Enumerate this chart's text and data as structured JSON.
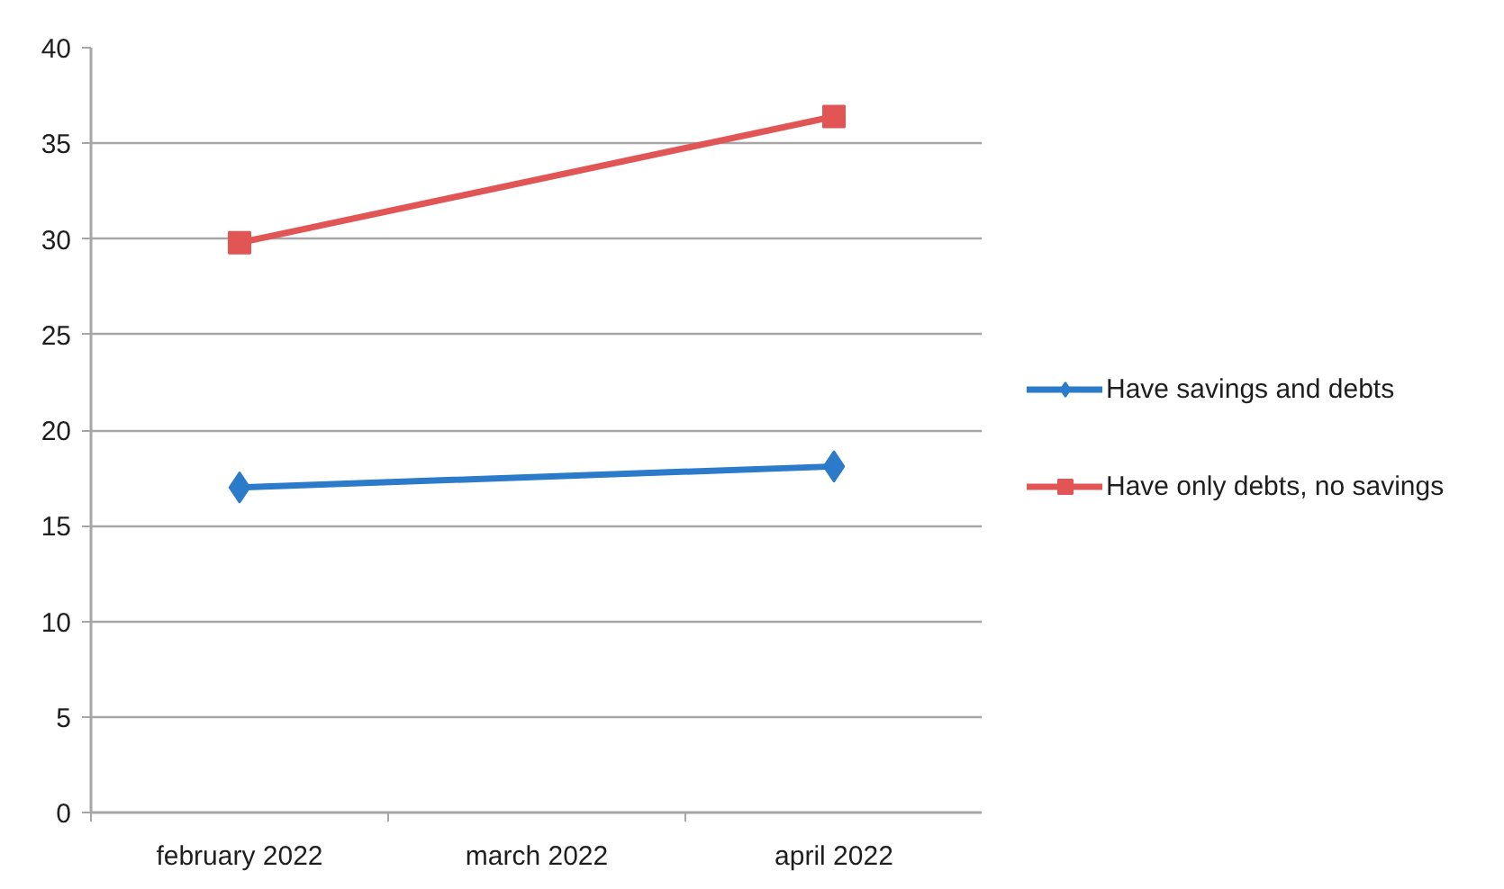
{
  "chart_data": {
    "type": "line",
    "categories": [
      "february 2022",
      "march 2022",
      "april 2022"
    ],
    "series": [
      {
        "name": "Have savings and debts",
        "color": "#2b7bca",
        "marker": "diamond",
        "values": [
          17.0,
          null,
          18.1
        ]
      },
      {
        "name": "Have only debts, no savings",
        "color": "#e15554",
        "marker": "square",
        "values": [
          29.8,
          null,
          36.4
        ]
      }
    ],
    "ylim": [
      0,
      40
    ],
    "yticks": [
      0,
      5,
      10,
      15,
      20,
      25,
      30,
      35,
      40
    ],
    "grid": "y",
    "legend": "right",
    "line_style": "solid"
  }
}
